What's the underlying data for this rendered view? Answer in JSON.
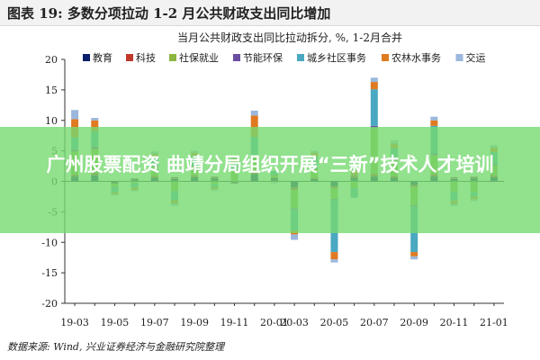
{
  "page": {
    "title": "图表 19: 多数分项拉动 1-2 月公共财政支出同比增加",
    "source": "数据来源: Wind, 兴业证券经济与金融研究院整理",
    "overlay_text": "广州股票配资 曲靖分局组织开展“三新”技术人才培训"
  },
  "colors": {
    "overlay": "#76da70",
    "education": "#0d1f6b",
    "science": "#c0392b",
    "social_security": "#8cb640",
    "energy_env": "#6b4ea2",
    "urban_rural": "#4aa8c0",
    "agri_water": "#e07a22",
    "transport": "#9bb7dc"
  },
  "chart_data": {
    "type": "bar",
    "stacked": true,
    "title": "当月公共财政支出同比拉动拆分, %, 1-2月合并",
    "xlabel": "",
    "ylabel": "",
    "ylim": [
      -20,
      20
    ],
    "yticks": [
      -20,
      -15,
      -10,
      -5,
      0,
      5,
      10,
      15,
      20
    ],
    "grid": false,
    "legend_position": "top",
    "categories": [
      "19-03",
      "19-04",
      "19-05",
      "19-06",
      "19-07",
      "19-08",
      "19-09",
      "19-10",
      "19-11",
      "19-12",
      "20-01",
      "20-03",
      "20-04",
      "20-05",
      "20-06",
      "20-07",
      "20-08",
      "20-09",
      "20-10",
      "20-11",
      "20-12",
      "21-01"
    ],
    "xtick_labels": [
      "19-03",
      "19-05",
      "19-07",
      "19-09",
      "19-11",
      "20-01",
      "20-03",
      "20-05",
      "20-07",
      "20-09",
      "20-11",
      "21-01"
    ],
    "series": [
      {
        "name": "教育",
        "key": "education",
        "values": [
          0.8,
          1.0,
          -0.3,
          0.3,
          0.6,
          0.4,
          0.7,
          0.5,
          -0.2,
          1.2,
          0.5,
          -1.0,
          0.4,
          -0.8,
          0.6,
          0.8,
          0.6,
          -0.6,
          0.8,
          0.4,
          0.5,
          0.7
        ]
      },
      {
        "name": "科技",
        "key": "science",
        "values": [
          0.3,
          0.4,
          -0.1,
          0.1,
          0.3,
          0.2,
          0.3,
          0.2,
          -0.1,
          0.6,
          0.2,
          -0.4,
          0.2,
          -0.3,
          0.3,
          0.4,
          0.3,
          -0.3,
          0.4,
          0.2,
          0.2,
          0.3
        ]
      },
      {
        "name": "社保就业",
        "key": "social_security",
        "values": [
          3.8,
          3.9,
          -0.5,
          -0.3,
          1.5,
          -1.6,
          1.4,
          -0.5,
          1.8,
          2.2,
          0.3,
          -3.0,
          1.4,
          -1.8,
          -1.1,
          7.5,
          2.5,
          -3.0,
          3.1,
          -1.7,
          -1.8,
          1.6
        ]
      },
      {
        "name": "节能环保",
        "key": "energy_env",
        "values": [
          0.3,
          0.4,
          -0.1,
          0.1,
          0.2,
          0.1,
          0.2,
          0.1,
          -0.1,
          0.3,
          0.1,
          -0.2,
          0.2,
          -0.2,
          0.1,
          0.4,
          0.2,
          -0.2,
          0.3,
          0.1,
          0.1,
          0.2
        ]
      },
      {
        "name": "城乡社区事务",
        "key": "urban_rural",
        "values": [
          2.0,
          2.5,
          -0.8,
          -0.7,
          1.5,
          -1.5,
          1.6,
          -0.5,
          1.3,
          3.0,
          0.6,
          -3.5,
          1.8,
          -8.5,
          -1.6,
          6.0,
          1.8,
          -7.5,
          4.5,
          -1.5,
          -0.7,
          2.0
        ]
      },
      {
        "name": "农林水事务",
        "key": "agri_water",
        "values": [
          3.0,
          1.8,
          -0.3,
          -0.4,
          0.4,
          -0.5,
          0.5,
          -0.3,
          0.6,
          3.5,
          -0.1,
          -0.6,
          0.7,
          -1.2,
          0.8,
          1.2,
          0.8,
          -0.7,
          0.9,
          -0.5,
          -0.4,
          0.7
        ]
      },
      {
        "name": "交运",
        "key": "transport",
        "values": [
          1.5,
          0.4,
          -0.2,
          -0.2,
          0.4,
          -0.4,
          0.3,
          -0.2,
          0.4,
          0.8,
          -0.2,
          -0.9,
          0.3,
          -0.5,
          0.4,
          0.7,
          0.5,
          -0.5,
          0.6,
          -0.3,
          -0.3,
          0.4
        ]
      }
    ]
  }
}
